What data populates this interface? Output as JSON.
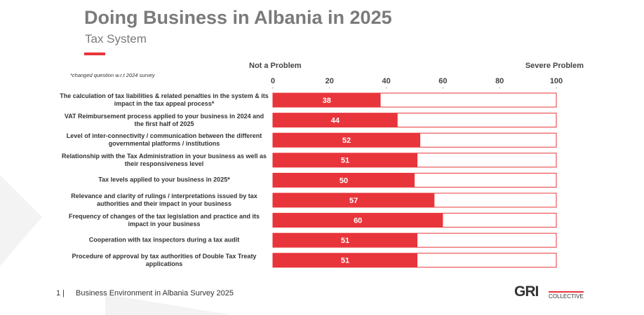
{
  "chart_data": {
    "type": "hbar",
    "title": "Doing Business in Albania in 2025",
    "subtitle": "Tax System",
    "note": "*changed question w.r.t 2024 survey",
    "low_label": "Not a Problem",
    "high_label": "Severe Problem",
    "categories": [
      "The calculation of tax liabilities & related penalties in the system & its impact in the tax appeal process*",
      "VAT Reimbursement process applied to your business in 2024 and the first half of 2025",
      "Level of inter-connectivity / communication between the different governmental platforms / institutions",
      "Relationship with the Tax Administration in your business as well as their responsiveness level",
      "Tax levels applied to your business in 2025*",
      "Relevance and clarity of rulings / interpretations issued by tax authorities and their impact in your business",
      "Frequency of changes of the tax legislation and practice and its impact in your business",
      "Cooperation with tax inspectors during a tax audit",
      "Procedure of approval by tax authorities of Double Tax Treaty applications"
    ],
    "values": [
      38,
      44,
      52,
      51,
      50,
      57,
      60,
      51,
      51
    ],
    "color": "#e8353b",
    "xlim": [
      0,
      100
    ],
    "xticks": [
      0,
      20,
      40,
      60,
      80,
      100
    ]
  },
  "footer": {
    "page": "1 |",
    "text": "Business Environment in Albania Survey 2025",
    "logo": "GRI",
    "logo_sub": "COLLECTIVE"
  }
}
